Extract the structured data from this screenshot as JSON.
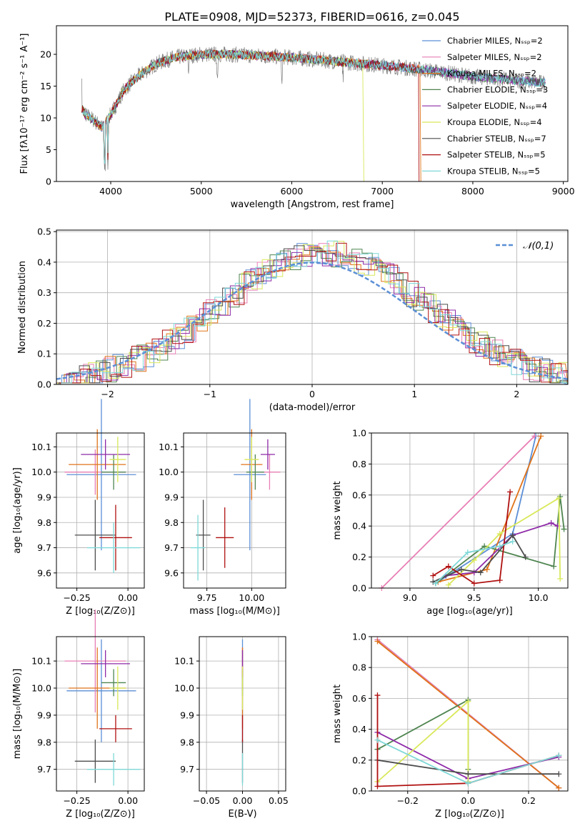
{
  "colors": [
    "#5b8fd6",
    "#e87fb5",
    "#e0731a",
    "#4f8550",
    "#8e2aa8",
    "#d9e85a",
    "#4d4d4d",
    "#b01010",
    "#7fd8d8"
  ],
  "legend_title": "𝒩(0,1)",
  "chart_data": [
    {
      "type": "line",
      "title": "PLATE=0908, MJD=52373, FIBERID=0616, z=0.045",
      "xlabel": "wavelength [Angstrom, rest frame]",
      "ylabel": "Flux [fλ10⁻¹⁷ erg cm⁻² s⁻¹ A⁻¹]",
      "xlim": [
        3400,
        9050
      ],
      "ylim": [
        0,
        24.5
      ],
      "xticks": [
        "4000",
        "5000",
        "6000",
        "7000",
        "8000",
        "9000"
      ],
      "yticks": [
        "0",
        "5",
        "10",
        "15",
        "20"
      ],
      "legend": [
        "Chabrier MILES, Nₛₛₚ=2",
        "Salpeter MILES, Nₛₛₚ=2",
        "Kroupa MILES, Nₛₛₚ=2",
        "Chabrier ELODIE, Nₛₛₚ=3",
        "Salpeter ELODIE, Nₛₛₚ=4",
        "Kroupa ELODIE, Nₛₛₚ=4",
        "Chabrier STELIB, Nₛₛₚ=7",
        "Salpeter STELIB, Nₛₛₚ=5",
        "Kroupa STELIB, Nₛₛₚ=5"
      ],
      "continuum": {
        "x": [
          3680,
          3720,
          3800,
          3900,
          4000,
          4150,
          4300,
          4500,
          4700,
          5000,
          5300,
          5600,
          6000,
          6400,
          6800,
          7200,
          7600,
          8000,
          8400,
          8800
        ],
        "y": [
          11.5,
          10.5,
          9.8,
          8.5,
          10.5,
          14.5,
          16.5,
          18.5,
          19.5,
          20.0,
          20.0,
          19.8,
          19.5,
          19.0,
          18.5,
          18.0,
          17.3,
          16.5,
          16.0,
          15.5
        ]
      }
    },
    {
      "type": "histogram",
      "xlabel": "(data-model)/error",
      "ylabel": "Normed distribution",
      "xlim": [
        -2.5,
        2.5
      ],
      "ylim": [
        0,
        0.505
      ],
      "xticks": [
        "−2",
        "−1",
        "0",
        "1",
        "2"
      ],
      "yticks": [
        "0.0",
        "0.1",
        "0.2",
        "0.3",
        "0.4",
        "0.5"
      ],
      "reference": "normal(0,1)"
    },
    {
      "type": "scatter",
      "xlabel": "Z [log₁₀(Z/Z⊙)]",
      "ylabel": "age [log₁₀(age/yr)]",
      "xlim": [
        -0.35,
        0.08
      ],
      "ylim": [
        9.54,
        10.155
      ],
      "xticks": [
        "−0.25",
        "0.00"
      ],
      "yticks": [
        "9.6",
        "9.7",
        "9.8",
        "9.9",
        "10.0",
        "10.1"
      ],
      "points": [
        {
          "x": -0.13,
          "y": 9.99,
          "xerr": 0.17,
          "yerr": 0.3
        },
        {
          "x": -0.16,
          "y": 10.0,
          "xerr": 0.15,
          "yerr": 0.09
        },
        {
          "x": -0.15,
          "y": 10.03,
          "xerr": 0.14,
          "yerr": 0.14
        },
        {
          "x": -0.07,
          "y": 10.0,
          "xerr": 0.06,
          "yerr": 0.07
        },
        {
          "x": -0.11,
          "y": 10.07,
          "xerr": 0.12,
          "yerr": 0.06
        },
        {
          "x": -0.05,
          "y": 10.05,
          "xerr": 0.04,
          "yerr": 0.09
        },
        {
          "x": -0.16,
          "y": 9.75,
          "xerr": 0.1,
          "yerr": 0.14
        },
        {
          "x": -0.06,
          "y": 9.74,
          "xerr": 0.08,
          "yerr": 0.13
        },
        {
          "x": -0.07,
          "y": 9.7,
          "xerr": 0.13,
          "yerr": 0.1
        }
      ]
    },
    {
      "type": "scatter",
      "xlabel": "mass [log₁₀(M/M⊙)]",
      "ylabel": "",
      "xlim": [
        9.62,
        10.19
      ],
      "ylim": [
        9.54,
        10.155
      ],
      "xticks": [
        "9.75",
        "10.00"
      ],
      "yticks": [
        "9.6",
        "9.7",
        "9.8",
        "9.9",
        "10.0",
        "10.1"
      ],
      "points": [
        {
          "x": 9.99,
          "y": 9.99,
          "xerr": 0.09,
          "yerr": 0.3
        },
        {
          "x": 10.1,
          "y": 10.0,
          "xerr": 0.06,
          "yerr": 0.07
        },
        {
          "x": 10.0,
          "y": 10.03,
          "xerr": 0.06,
          "yerr": 0.14
        },
        {
          "x": 10.02,
          "y": 10.0,
          "xerr": 0.05,
          "yerr": 0.07
        },
        {
          "x": 10.09,
          "y": 10.07,
          "xerr": 0.04,
          "yerr": 0.06
        },
        {
          "x": 10.0,
          "y": 10.05,
          "xerr": 0.04,
          "yerr": 0.09
        },
        {
          "x": 9.73,
          "y": 9.75,
          "xerr": 0.04,
          "yerr": 0.14
        },
        {
          "x": 9.85,
          "y": 9.74,
          "xerr": 0.05,
          "yerr": 0.12
        },
        {
          "x": 9.7,
          "y": 9.7,
          "xerr": 0.04,
          "yerr": 0.13
        }
      ]
    },
    {
      "type": "line",
      "xlabel": "age [log₁₀(age/yr)]",
      "ylabel": "mass weight",
      "xlim": [
        8.7,
        10.23
      ],
      "ylim": [
        0,
        1.0
      ],
      "xticks": [
        "9.0",
        "9.5",
        "10.0"
      ],
      "yticks": [
        "0.0",
        "0.2",
        "0.4",
        "0.6",
        "0.8",
        "1.0"
      ],
      "series": [
        {
          "x": [
            9.2,
            9.8,
            9.98
          ],
          "y": [
            0.03,
            0.35,
            0.98
          ]
        },
        {
          "x": [
            8.78,
            9.97
          ],
          "y": [
            0.0,
            0.98
          ]
        },
        {
          "x": [
            9.22,
            9.6,
            10.02
          ],
          "y": [
            0.04,
            0.12,
            0.98
          ]
        },
        {
          "x": [
            9.2,
            9.58,
            10.12,
            10.17,
            10.2
          ],
          "y": [
            0.03,
            0.27,
            0.14,
            0.59,
            0.38
          ]
        },
        {
          "x": [
            9.28,
            9.5,
            9.8,
            10.1,
            10.15
          ],
          "y": [
            0.08,
            0.1,
            0.34,
            0.42,
            0.4
          ]
        },
        {
          "x": [
            9.3,
            9.5,
            9.7,
            10.16,
            10.17
          ],
          "y": [
            0.02,
            0.18,
            0.35,
            0.58,
            0.06
          ]
        },
        {
          "x": [
            9.18,
            9.4,
            9.55,
            9.8,
            9.9
          ],
          "y": [
            0.04,
            0.12,
            0.1,
            0.34,
            0.2
          ]
        },
        {
          "x": [
            9.18,
            9.3,
            9.5,
            9.7,
            9.78
          ],
          "y": [
            0.08,
            0.14,
            0.03,
            0.05,
            0.62
          ]
        },
        {
          "x": [
            9.2,
            9.45,
            9.7,
            9.8
          ],
          "y": [
            0.03,
            0.23,
            0.27,
            0.3
          ]
        }
      ]
    },
    {
      "type": "scatter",
      "xlabel": "Z [log₁₀(Z/Z⊙)]",
      "ylabel": "mass [log₁₀(M/M⊙)]",
      "xlim": [
        -0.35,
        0.08
      ],
      "ylim": [
        9.62,
        10.19
      ],
      "xticks": [
        "−0.25",
        "0.00"
      ],
      "yticks": [
        "9.7",
        "9.8",
        "9.9",
        "10.0",
        "10.1"
      ],
      "points": [
        {
          "x": -0.13,
          "y": 9.99,
          "xerr": 0.17,
          "yerr": 0.19
        },
        {
          "x": -0.16,
          "y": 10.1,
          "xerr": 0.15,
          "yerr": 0.19
        },
        {
          "x": -0.15,
          "y": 10.0,
          "xerr": 0.14,
          "yerr": 0.15
        },
        {
          "x": -0.07,
          "y": 10.02,
          "xerr": 0.06,
          "yerr": 0.05
        },
        {
          "x": -0.11,
          "y": 10.09,
          "xerr": 0.12,
          "yerr": 0.05
        },
        {
          "x": -0.05,
          "y": 10.0,
          "xerr": 0.04,
          "yerr": 0.08
        },
        {
          "x": -0.16,
          "y": 9.73,
          "xerr": 0.1,
          "yerr": 0.08
        },
        {
          "x": -0.06,
          "y": 9.85,
          "xerr": 0.08,
          "yerr": 0.05
        },
        {
          "x": -0.07,
          "y": 9.7,
          "xerr": 0.13,
          "yerr": 0.06
        }
      ]
    },
    {
      "type": "scatter",
      "xlabel": "E(B-V)",
      "ylabel": "",
      "xlim": [
        -0.06,
        0.06
      ],
      "ylim": [
        9.62,
        10.19
      ],
      "xticks": [
        "−0.05",
        "0.00",
        "0.05"
      ],
      "yticks": [
        "9.7",
        "9.8",
        "9.9",
        "10.0",
        "10.1"
      ],
      "points": [
        {
          "x": 0.0,
          "y": 9.99,
          "xerr": 0.0,
          "yerr": 0.19
        },
        {
          "x": 0.0,
          "y": 10.1,
          "xerr": 0.0,
          "yerr": 0.05
        },
        {
          "x": 0.0,
          "y": 10.0,
          "xerr": 0.0,
          "yerr": 0.15
        },
        {
          "x": 0.0,
          "y": 10.02,
          "xerr": 0.0,
          "yerr": 0.05
        },
        {
          "x": 0.0,
          "y": 10.09,
          "xerr": 0.0,
          "yerr": 0.05
        },
        {
          "x": 0.0,
          "y": 10.0,
          "xerr": 0.0,
          "yerr": 0.08
        },
        {
          "x": 0.0,
          "y": 9.73,
          "xerr": 0.0,
          "yerr": 0.08
        },
        {
          "x": 0.0,
          "y": 9.85,
          "xerr": 0.0,
          "yerr": 0.05
        },
        {
          "x": 0.0,
          "y": 9.7,
          "xerr": 0.0,
          "yerr": 0.06
        }
      ]
    },
    {
      "type": "line",
      "xlabel": "Z [log₁₀(Z/Z⊙)]",
      "ylabel": "mass weight",
      "xlim": [
        -0.32,
        0.33
      ],
      "ylim": [
        0,
        1.0
      ],
      "xticks": [
        "−0.2",
        "0.0",
        "0.2"
      ],
      "yticks": [
        "0.0",
        "0.2",
        "0.4",
        "0.6",
        "0.8",
        "1.0"
      ],
      "series": [
        {
          "x": [
            -0.3,
            0.3
          ],
          "y": [
            0.98,
            0.02
          ]
        },
        {
          "x": [
            -0.3,
            0.3
          ],
          "y": [
            0.98,
            0.02
          ]
        },
        {
          "x": [
            -0.3,
            0.3
          ],
          "y": [
            0.97,
            0.02
          ]
        },
        {
          "x": [
            -0.3,
            0.0,
            0.0
          ],
          "y": [
            0.27,
            0.59,
            0.14
          ]
        },
        {
          "x": [
            -0.3,
            0.0,
            0.3
          ],
          "y": [
            0.38,
            0.08,
            0.22
          ]
        },
        {
          "x": [
            -0.3,
            0.0,
            0.0
          ],
          "y": [
            0.06,
            0.58,
            0.06
          ]
        },
        {
          "x": [
            -0.3,
            0.0,
            0.3
          ],
          "y": [
            0.2,
            0.11,
            0.11
          ]
        },
        {
          "x": [
            -0.3,
            -0.3,
            0.0,
            0.3
          ],
          "y": [
            0.62,
            0.03,
            0.05,
            0.23
          ]
        },
        {
          "x": [
            -0.3,
            0.0,
            0.3
          ],
          "y": [
            0.33,
            0.05,
            0.23
          ]
        }
      ]
    }
  ]
}
